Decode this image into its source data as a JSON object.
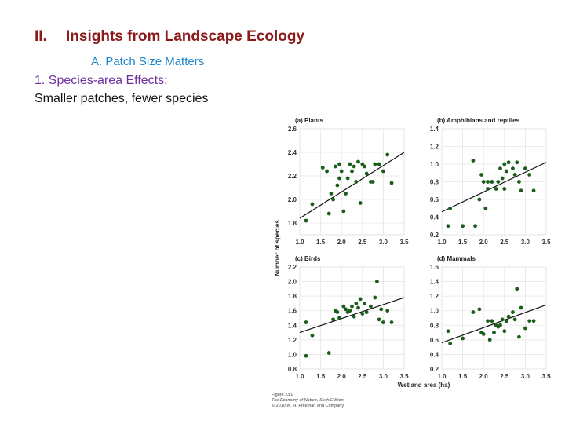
{
  "slide": {
    "title_num": "II.",
    "title": "Insights from Landscape Ecology",
    "subtitle": "A. Patch Size Matters",
    "point1": "1. Species-area Effects:",
    "point2": "Smaller patches, fewer species"
  },
  "figure": {
    "ylabel": "Number of species",
    "xlabel": "Wetland area (ha)",
    "caption_line1": "Figure 23.9",
    "caption_line2": "The Economy of Nature, Sixth Edition",
    "caption_line3": "© 2010 W. H. Freeman and Company"
  },
  "colors": {
    "point": "#1a5e1a",
    "line": "#111111",
    "grid": "#e6e6e6"
  },
  "chart_data": [
    {
      "type": "scatter",
      "title": "(a) Plants",
      "xlim": [
        1.0,
        3.5
      ],
      "xticks": [
        "1.0",
        "1.5",
        "2.0",
        "2.5",
        "3.0",
        "3.5"
      ],
      "ylim": [
        1.7,
        2.6
      ],
      "yticks": [
        "1.8",
        "2.0",
        "2.2",
        "2.4",
        "2.6"
      ],
      "trend": [
        [
          1.0,
          1.84
        ],
        [
          3.5,
          2.4
        ]
      ],
      "points": [
        [
          1.15,
          1.82
        ],
        [
          1.3,
          1.96
        ],
        [
          1.55,
          2.27
        ],
        [
          1.65,
          2.24
        ],
        [
          1.7,
          1.88
        ],
        [
          1.75,
          2.05
        ],
        [
          1.8,
          2.0
        ],
        [
          1.85,
          2.28
        ],
        [
          1.9,
          2.12
        ],
        [
          1.95,
          2.18
        ],
        [
          1.95,
          2.3
        ],
        [
          2.0,
          2.24
        ],
        [
          2.05,
          1.9
        ],
        [
          2.1,
          2.05
        ],
        [
          2.15,
          2.18
        ],
        [
          2.2,
          2.3
        ],
        [
          2.25,
          2.24
        ],
        [
          2.3,
          2.28
        ],
        [
          2.35,
          2.15
        ],
        [
          2.4,
          2.32
        ],
        [
          2.45,
          1.97
        ],
        [
          2.5,
          2.3
        ],
        [
          2.55,
          2.28
        ],
        [
          2.6,
          2.22
        ],
        [
          2.7,
          2.15
        ],
        [
          2.75,
          2.15
        ],
        [
          2.8,
          2.3
        ],
        [
          2.9,
          2.3
        ],
        [
          3.0,
          2.24
        ],
        [
          3.1,
          2.38
        ],
        [
          3.2,
          2.14
        ]
      ]
    },
    {
      "type": "scatter",
      "title": "(b) Amphibians and reptiles",
      "xlim": [
        1.0,
        3.5
      ],
      "xticks": [
        "1.0",
        "1.5",
        "2.0",
        "2.5",
        "3.0",
        "3.5"
      ],
      "ylim": [
        0.2,
        1.4
      ],
      "yticks": [
        "0.2",
        "0.4",
        "0.6",
        "0.8",
        "1.0",
        "1.2",
        "1.4"
      ],
      "trend": [
        [
          1.0,
          0.46
        ],
        [
          3.5,
          1.02
        ]
      ],
      "points": [
        [
          1.15,
          0.3
        ],
        [
          1.2,
          0.5
        ],
        [
          1.5,
          0.3
        ],
        [
          1.75,
          1.04
        ],
        [
          1.8,
          0.3
        ],
        [
          1.9,
          0.6
        ],
        [
          1.95,
          0.88
        ],
        [
          2.0,
          0.8
        ],
        [
          2.05,
          0.5
        ],
        [
          2.1,
          0.72
        ],
        [
          2.1,
          0.8
        ],
        [
          2.2,
          0.8
        ],
        [
          2.3,
          0.72
        ],
        [
          2.35,
          0.8
        ],
        [
          2.4,
          0.95
        ],
        [
          2.45,
          0.84
        ],
        [
          2.5,
          1.0
        ],
        [
          2.5,
          0.72
        ],
        [
          2.55,
          0.92
        ],
        [
          2.6,
          1.02
        ],
        [
          2.7,
          0.95
        ],
        [
          2.75,
          0.88
        ],
        [
          2.8,
          1.02
        ],
        [
          2.9,
          0.7
        ],
        [
          3.0,
          0.95
        ],
        [
          3.1,
          0.88
        ],
        [
          3.2,
          0.7
        ],
        [
          2.85,
          0.8
        ]
      ]
    },
    {
      "type": "scatter",
      "title": "(c) Birds",
      "xlim": [
        1.0,
        3.5
      ],
      "xticks": [
        "1.0",
        "1.5",
        "2.0",
        "2.5",
        "3.0",
        "3.5"
      ],
      "ylim": [
        0.8,
        2.2
      ],
      "yticks": [
        "0.8",
        "1.0",
        "1.2",
        "1.4",
        "1.6",
        "1.8",
        "2.0",
        "2.2"
      ],
      "trend": [
        [
          1.0,
          1.3
        ],
        [
          3.5,
          1.78
        ]
      ],
      "points": [
        [
          1.15,
          1.44
        ],
        [
          1.15,
          0.98
        ],
        [
          1.3,
          1.26
        ],
        [
          1.7,
          1.02
        ],
        [
          1.8,
          1.48
        ],
        [
          1.85,
          1.6
        ],
        [
          1.9,
          1.58
        ],
        [
          1.95,
          1.5
        ],
        [
          2.05,
          1.66
        ],
        [
          2.1,
          1.62
        ],
        [
          2.15,
          1.58
        ],
        [
          2.2,
          1.6
        ],
        [
          2.25,
          1.66
        ],
        [
          2.3,
          1.52
        ],
        [
          2.35,
          1.7
        ],
        [
          2.4,
          1.64
        ],
        [
          2.45,
          1.76
        ],
        [
          2.5,
          1.56
        ],
        [
          2.55,
          1.7
        ],
        [
          2.6,
          1.58
        ],
        [
          2.7,
          1.66
        ],
        [
          2.8,
          1.78
        ],
        [
          2.85,
          2.0
        ],
        [
          2.9,
          1.48
        ],
        [
          2.95,
          1.62
        ],
        [
          3.0,
          1.44
        ],
        [
          3.1,
          1.6
        ],
        [
          3.2,
          1.44
        ]
      ]
    },
    {
      "type": "scatter",
      "title": "(d) Mammals",
      "xlim": [
        1.0,
        3.5
      ],
      "xticks": [
        "1.0",
        "1.5",
        "2.0",
        "2.5",
        "3.0",
        "3.5"
      ],
      "ylim": [
        0.2,
        1.6
      ],
      "yticks": [
        "0.2",
        "0.4",
        "0.6",
        "0.8",
        "1.0",
        "1.2",
        "1.4",
        "1.6"
      ],
      "trend": [
        [
          1.0,
          0.56
        ],
        [
          3.5,
          1.08
        ]
      ],
      "points": [
        [
          1.15,
          0.72
        ],
        [
          1.2,
          0.55
        ],
        [
          1.5,
          0.62
        ],
        [
          1.75,
          0.98
        ],
        [
          1.9,
          1.02
        ],
        [
          1.95,
          0.7
        ],
        [
          2.0,
          0.68
        ],
        [
          2.1,
          0.86
        ],
        [
          2.15,
          0.6
        ],
        [
          2.2,
          0.86
        ],
        [
          2.25,
          0.7
        ],
        [
          2.3,
          0.8
        ],
        [
          2.35,
          0.78
        ],
        [
          2.4,
          0.8
        ],
        [
          2.45,
          0.88
        ],
        [
          2.5,
          0.72
        ],
        [
          2.55,
          0.85
        ],
        [
          2.6,
          0.92
        ],
        [
          2.7,
          0.98
        ],
        [
          2.75,
          0.88
        ],
        [
          2.8,
          1.3
        ],
        [
          2.85,
          0.64
        ],
        [
          2.9,
          1.04
        ],
        [
          3.0,
          0.76
        ],
        [
          3.1,
          0.86
        ],
        [
          3.2,
          0.86
        ]
      ]
    }
  ]
}
